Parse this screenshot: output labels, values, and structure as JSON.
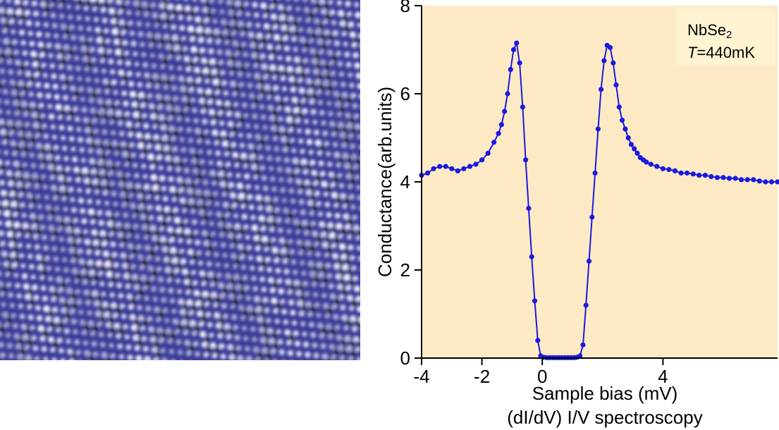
{
  "colors": {
    "plot_bg": "#fde9c4",
    "series": "#1a1adf",
    "stm_bg": "#3a3a96",
    "stm_bright": "#f4f4ff",
    "stm_dark": "#05051e",
    "legend_bg": "#fff3d2"
  },
  "annotation": {
    "material_base": "NbSe",
    "material_sub": "2",
    "temp_symbol": "T",
    "temp_value": "=440mK"
  },
  "chart_data": {
    "type": "scatter",
    "xlabel": "Sample bias (mV)",
    "xlabel_line2": "(dI/dV) I/V spectroscopy",
    "ylabel": "Conductance(arb.units)",
    "xlim": [
      -4,
      7.8
    ],
    "ylim": [
      0,
      8
    ],
    "xticks": [
      -4,
      -2,
      0,
      4
    ],
    "yticks": [
      0,
      2,
      4,
      6,
      8
    ],
    "xtick_labels": [
      "-4",
      "-2",
      "0",
      "4"
    ],
    "ytick_labels": [
      "0",
      "2",
      "4",
      "6",
      "8"
    ],
    "grid": false,
    "series": [
      {
        "x": [
          -4.0,
          -3.8,
          -3.6,
          -3.4,
          -3.2,
          -3.0,
          -2.8,
          -2.6,
          -2.4,
          -2.2,
          -2.0,
          -1.8,
          -1.6,
          -1.45,
          -1.35,
          -1.25,
          -1.15,
          -1.05,
          -0.95,
          -0.85,
          -0.75,
          -0.65,
          -0.55,
          -0.45,
          -0.35,
          -0.25,
          -0.15,
          -0.05,
          0.05,
          0.15,
          0.25,
          0.35,
          0.45,
          0.55,
          0.65,
          0.75,
          0.85,
          0.95,
          1.05,
          1.15,
          1.25,
          1.35,
          1.45,
          1.55,
          1.65,
          1.75,
          1.85,
          1.95,
          2.05,
          2.15,
          2.25,
          2.35,
          2.45,
          2.55,
          2.65,
          2.75,
          2.85,
          2.95,
          3.05,
          3.15,
          3.25,
          3.35,
          3.45,
          3.6,
          3.8,
          4.0,
          4.2,
          4.4,
          4.6,
          4.8,
          5.0,
          5.2,
          5.4,
          5.6,
          5.8,
          6.0,
          6.2,
          6.4,
          6.6,
          6.8,
          7.0,
          7.2,
          7.4,
          7.6,
          7.8
        ],
        "y": [
          4.15,
          4.2,
          4.3,
          4.35,
          4.35,
          4.3,
          4.25,
          4.3,
          4.35,
          4.4,
          4.5,
          4.65,
          4.9,
          5.1,
          5.3,
          5.6,
          6.0,
          6.55,
          7.0,
          7.15,
          6.7,
          5.7,
          4.5,
          3.4,
          2.3,
          1.3,
          0.4,
          0.05,
          0.02,
          0.01,
          0.01,
          0.01,
          0.01,
          0.01,
          0.01,
          0.01,
          0.01,
          0.01,
          0.01,
          0.02,
          0.05,
          0.3,
          1.2,
          2.2,
          3.2,
          4.2,
          5.2,
          6.1,
          6.75,
          7.1,
          7.05,
          6.7,
          6.2,
          5.7,
          5.4,
          5.2,
          5.0,
          4.85,
          4.75,
          4.65,
          4.55,
          4.5,
          4.45,
          4.4,
          4.35,
          4.3,
          4.28,
          4.25,
          4.2,
          4.2,
          4.18,
          4.15,
          4.15,
          4.12,
          4.1,
          4.1,
          4.08,
          4.08,
          4.05,
          4.05,
          4.05,
          4.02,
          4.0,
          4.0,
          4.0
        ]
      }
    ]
  }
}
